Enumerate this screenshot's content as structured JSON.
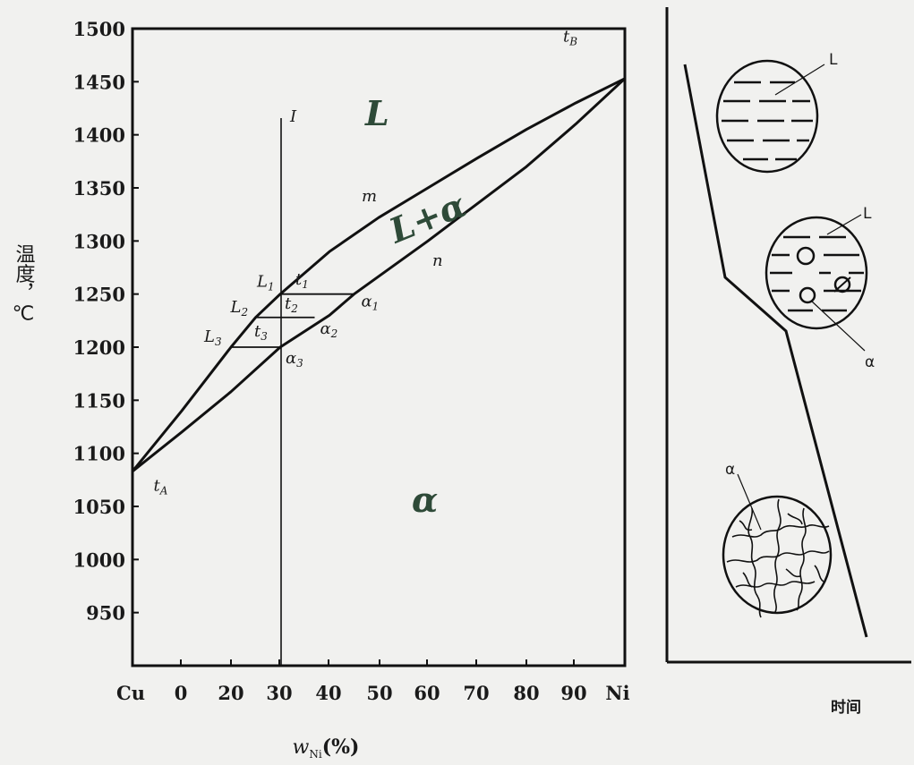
{
  "chart_data": {
    "type": "phase-diagram",
    "title": "",
    "ylabel": "温度，℃",
    "xlabel": "w",
    "xlabel_sub": "Ni",
    "xlabel_unit": "(%)",
    "x_ticks": [
      "Cu",
      "0",
      "20",
      "30",
      "40",
      "50",
      "60",
      "70",
      "80",
      "90",
      "Ni"
    ],
    "y_ticks": [
      "1500",
      "1450",
      "1400",
      "1350",
      "1300",
      "1250",
      "1200",
      "1150",
      "1100",
      "1050",
      "1000",
      "950"
    ],
    "ylim": [
      900,
      1500
    ],
    "xlim": [
      0,
      100
    ],
    "liquidus": [
      [
        0,
        1083
      ],
      [
        10,
        1140
      ],
      [
        20,
        1200
      ],
      [
        25,
        1228
      ],
      [
        30,
        1250
      ],
      [
        40,
        1290
      ],
      [
        50,
        1322
      ],
      [
        60,
        1350
      ],
      [
        70,
        1378
      ],
      [
        80,
        1405
      ],
      [
        90,
        1430
      ],
      [
        100,
        1453
      ]
    ],
    "solidus": [
      [
        0,
        1083
      ],
      [
        10,
        1120
      ],
      [
        20,
        1158
      ],
      [
        30,
        1200
      ],
      [
        40,
        1230
      ],
      [
        45,
        1250
      ],
      [
        60,
        1300
      ],
      [
        70,
        1335
      ],
      [
        80,
        1370
      ],
      [
        90,
        1410
      ],
      [
        100,
        1453
      ]
    ],
    "alloy_line": {
      "x": 30,
      "label": "I"
    },
    "tie_lines": [
      {
        "L": [
          30,
          1250
        ],
        "a": [
          45,
          1250
        ],
        "t": "t",
        "t_sub": "1",
        "L_label": "L",
        "L_sub": "1",
        "a_label": "α",
        "a_sub": "1"
      },
      {
        "L": [
          25,
          1228
        ],
        "a": [
          37,
          1228
        ],
        "t": "t",
        "t_sub": "2",
        "L_label": "L",
        "L_sub": "2",
        "a_label": "α",
        "a_sub": "2"
      },
      {
        "L": [
          20,
          1200
        ],
        "a": [
          30,
          1200
        ],
        "t": "t",
        "t_sub": "3",
        "L_label": "L",
        "L_sub": "3",
        "a_label": "α",
        "a_sub": "3"
      }
    ],
    "points": [
      {
        "label": "t",
        "sub": "A",
        "x": 1,
        "y": 1068
      },
      {
        "label": "t",
        "sub": "B",
        "x": 94,
        "y": 1464
      }
    ],
    "curve_labels": {
      "liquidus": "m",
      "solidus": "n"
    },
    "regions": {
      "liquid": "L",
      "two_phase": "L+α",
      "solid": "α"
    }
  },
  "cooling": {
    "time_label": "时间",
    "grain_labels": {
      "top": "L",
      "middle_L": "L",
      "middle_a": "α",
      "bottom": "α"
    }
  }
}
